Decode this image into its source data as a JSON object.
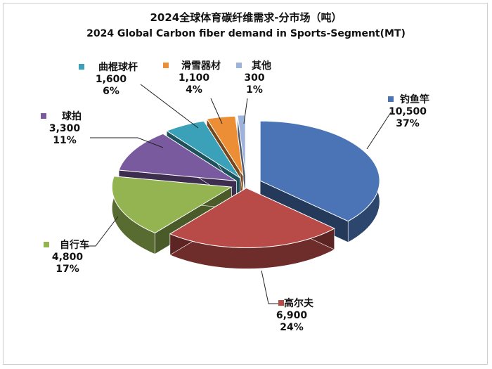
{
  "chart_data": {
    "type": "pie",
    "title": "2024全球体育碳纤维需求-分市场（吨）",
    "subtitle": "2024 Global Carbon fiber demand in Sports-Segment(MT)",
    "slices": [
      {
        "label": "钓鱼竿",
        "value": 10500,
        "value_text": "10,500",
        "percent_text": "37%",
        "color": "#4a74b5"
      },
      {
        "label": "高尔夫",
        "value": 6900,
        "value_text": "6,900",
        "percent_text": "24%",
        "color": "#b84a48"
      },
      {
        "label": "自行车",
        "value": 4800,
        "value_text": "4,800",
        "percent_text": "17%",
        "color": "#93b451"
      },
      {
        "label": "球拍",
        "value": 3300,
        "value_text": "3,300",
        "percent_text": "11%",
        "color": "#7a5a9e"
      },
      {
        "label": "曲棍球杆",
        "value": 1600,
        "value_text": "1,600",
        "percent_text": "6%",
        "color": "#3aa1b8"
      },
      {
        "label": "滑雪器材",
        "value": 1100,
        "value_text": "1,100",
        "percent_text": "4%",
        "color": "#ec8e36"
      },
      {
        "label": "其他",
        "value": 300,
        "value_text": "300",
        "percent_text": "1%",
        "color": "#9db3dc"
      }
    ],
    "legend": "none"
  }
}
